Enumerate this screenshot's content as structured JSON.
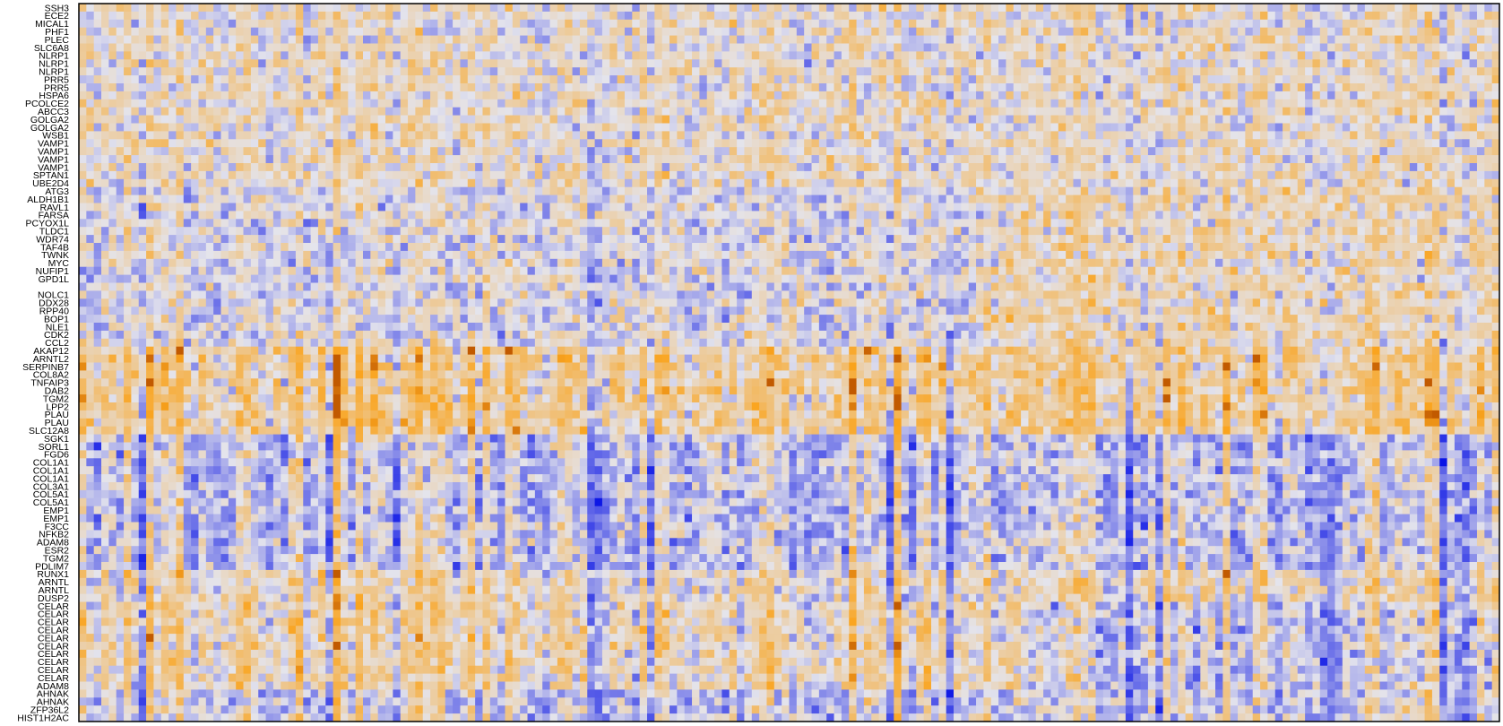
{
  "chart_data": {
    "type": "heatmap",
    "title": "",
    "xlabel": "",
    "ylabel": "",
    "row_labels": [
      "SSH3",
      "ECE2",
      "MICAL1",
      "PHF1",
      "PLEC",
      "SLC6A8",
      "NLRP1",
      "NLRP1",
      "NLRP1",
      "PRR5",
      "PRR5",
      "HSPA6",
      "PCOLCE2",
      "ABCC3",
      "GOLGA2",
      "GOLGA2",
      "WSB1",
      "VAMP1",
      "VAMP1",
      "VAMP1",
      "VAMP1",
      "SPTAN1",
      "UBE2D4",
      "ATG3",
      "ALDH1B1",
      "RAVL1",
      "FARSA",
      "PCYOX1L",
      "TLDC1",
      "WDR74",
      "TAF4B",
      "TWNK",
      "MYC",
      "NUFIP1",
      "GPD1L",
      "",
      "NOLC1",
      "DDX28",
      "RPP40",
      "BOP1",
      "NLE1",
      "CDK2",
      "CCL2",
      "AKAP12",
      "ARNTL2",
      "SERPINB7",
      "COL8A2",
      "TNFAIP3",
      "DAB2",
      "TGM2",
      "LPP2",
      "PLAU",
      "PLAU",
      "SLC12A8",
      "SGK1",
      "SORL1",
      "FGD6",
      "COL1A1",
      "COL1A1",
      "COL1A1",
      "COL3A1",
      "COL5A1",
      "COL5A1",
      "EMP1",
      "EMP1",
      "F3CC",
      "NFKB2",
      "ADAM8",
      "ESR2",
      "TGM2",
      "PDLIM7",
      "RUNX1",
      "ARNTL",
      "ARNTL",
      "DUSP2",
      "CELAR",
      "CELAR",
      "CELAR",
      "CELAR",
      "CELAR",
      "CELAR",
      "CELAR",
      "CELAR",
      "CELAR",
      "CELAR",
      "ADAM8",
      "AHNAK",
      "AHNAK",
      "ZFP36L2",
      "HIST1H2AC"
    ],
    "n_columns": 190,
    "row_blocks": [
      {
        "start": 0,
        "end": 10,
        "mean": 0.1
      },
      {
        "start": 11,
        "end": 22,
        "mean": 0.12
      },
      {
        "start": 23,
        "end": 42,
        "mean": 0.0
      },
      {
        "start": 43,
        "end": 53,
        "mean": 0.32
      },
      {
        "start": 54,
        "end": 70,
        "mean": -0.08
      },
      {
        "start": 71,
        "end": 74,
        "mean": 0.15
      },
      {
        "start": 75,
        "end": 85,
        "mean": 0.2
      },
      {
        "start": 86,
        "end": 89,
        "mean": -0.05
      }
    ],
    "column_segments": [
      {
        "start": 0,
        "end": 59
      },
      {
        "start": 60,
        "end": 124
      },
      {
        "start": 125,
        "end": 189
      }
    ],
    "value_range": [
      -1,
      1
    ],
    "colors": {
      "low": "#0a14e6",
      "mid": "#e4e4ec",
      "high": "#faa41e",
      "extreme": "#c25a00"
    }
  }
}
